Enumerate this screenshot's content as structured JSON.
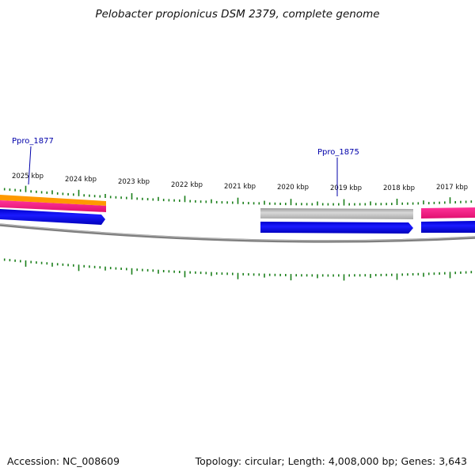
{
  "title": "Pelobacter propionicus DSM 2379, complete genome",
  "footer": {
    "accession": "Accession: NC_008609",
    "summary": "Topology: circular; Length: 4,008,000 bp; Genes: 3,643"
  },
  "colors": {
    "tick": "#1a7f1a",
    "backbone": "#7a7a7a",
    "gene_blue": "#0000ee",
    "gene_magenta": "#ee1188",
    "gene_orange": "#ff9900",
    "gene_gray": "#b4b4b4",
    "gene_label": "#0000aa"
  },
  "scale_labels": [
    "2025 kbp",
    "2024 kbp",
    "2023 kbp",
    "2022 kbp",
    "2021 kbp",
    "2020 kbp",
    "2019 kbp",
    "2018 kbp",
    "2017 kbp"
  ],
  "gene_labels": [
    {
      "name": "Ppro_1877"
    },
    {
      "name": "Ppro_1875"
    }
  ]
}
